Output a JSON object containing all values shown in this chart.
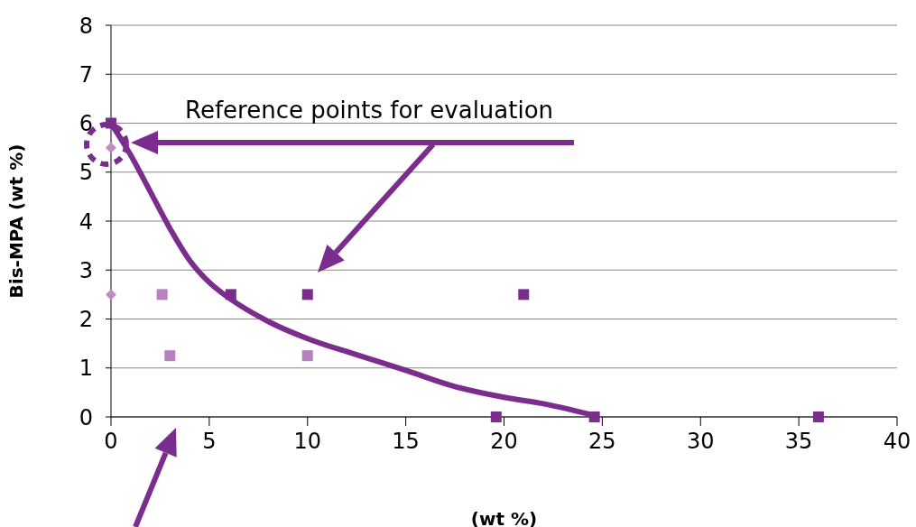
{
  "chart_data": {
    "type": "scatter",
    "xlabel": "(wt %)",
    "ylabel": "Bis-MPA (wt %)",
    "annotations": [
      "Reference points for evaluation"
    ],
    "xlim": [
      0,
      40
    ],
    "xticks": [
      0,
      5,
      10,
      15,
      20,
      25,
      30,
      35,
      40
    ],
    "ylim": [
      0,
      8
    ],
    "yticks": [
      0,
      1,
      2,
      3,
      4,
      5,
      6,
      7,
      8
    ],
    "grid": "y",
    "series": [
      {
        "type": "line",
        "color": "#7b2d8e",
        "marker": "none",
        "x": [
          0,
          1,
          2,
          3,
          4,
          5,
          6,
          8,
          10,
          12.5,
          15,
          17.5,
          20,
          22,
          24.6
        ],
        "values": [
          6,
          5.35,
          4.6,
          3.85,
          3.2,
          2.75,
          2.43,
          1.95,
          1.6,
          1.27,
          0.95,
          0.62,
          0.4,
          0.27,
          0.03
        ]
      },
      {
        "color": "#7b2d8e",
        "marker": "square",
        "x": [
          0,
          6.1,
          10,
          21,
          19.6,
          24.6,
          36
        ],
        "values": [
          6,
          2.5,
          2.5,
          2.5,
          0,
          0,
          0
        ]
      },
      {
        "color": "#b681bc",
        "marker": "square",
        "x": [
          2.6,
          3,
          10
        ],
        "values": [
          2.5,
          1.25,
          1.25
        ]
      },
      {
        "color": "#c08cc6",
        "marker": "diamond",
        "x": [
          0,
          0
        ],
        "values": [
          5.5,
          2.5
        ]
      }
    ]
  }
}
